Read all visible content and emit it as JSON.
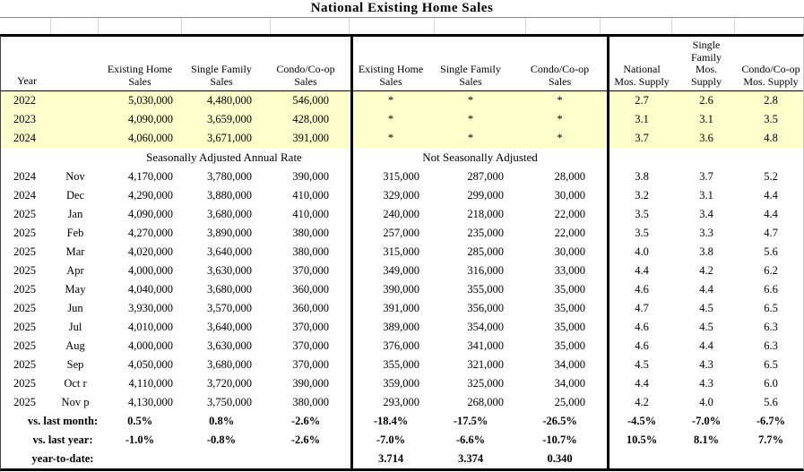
{
  "title": "National Existing Home Sales",
  "colors": {
    "highlight_yellow": "#FFFFCC",
    "border_black": "#000000",
    "grid_gray": "#D8D8D8"
  },
  "table": {
    "header": {
      "year_label": "Year",
      "saar_columns": [
        "Existing Home\nSales",
        "Single Family\nSales",
        "Condo/Co-op\nSales"
      ],
      "nsa_columns": [
        "Existing Home\nSales",
        "Single Family\nSales",
        "Condo/Co-op\nSales"
      ],
      "supply_columns": [
        "National\nMos. Supply",
        "Single\nFamily\nMos.\nSupply",
        "Condo/Co-op\nMos. Supply"
      ]
    },
    "saar_section_label": "Seasonally Adjusted Annual Rate",
    "nsa_section_label": "Not Seasonally Adjusted",
    "annual_rows": [
      {
        "year": "2022",
        "saar": [
          "5,030,000",
          "4,480,000",
          "546,000"
        ],
        "nsa": [
          "*",
          "*",
          "*"
        ],
        "supply": [
          "2.7",
          "2.6",
          "2.8"
        ]
      },
      {
        "year": "2023",
        "saar": [
          "4,090,000",
          "3,659,000",
          "428,000"
        ],
        "nsa": [
          "*",
          "*",
          "*"
        ],
        "supply": [
          "3.1",
          "3.1",
          "3.5"
        ]
      },
      {
        "year": "2024",
        "saar": [
          "4,060,000",
          "3,671,000",
          "391,000"
        ],
        "nsa": [
          "*",
          "*",
          "*"
        ],
        "supply": [
          "3.7",
          "3.6",
          "4.8"
        ]
      }
    ],
    "monthly_rows": [
      {
        "year": "2024",
        "month": "Nov",
        "saar": [
          "4,170,000",
          "3,780,000",
          "390,000"
        ],
        "nsa": [
          "315,000",
          "287,000",
          "28,000"
        ],
        "supply": [
          "3.8",
          "3.7",
          "5.2"
        ]
      },
      {
        "year": "2024",
        "month": "Dec",
        "saar": [
          "4,290,000",
          "3,880,000",
          "410,000"
        ],
        "nsa": [
          "329,000",
          "299,000",
          "30,000"
        ],
        "supply": [
          "3.2",
          "3.1",
          "4.4"
        ]
      },
      {
        "year": "2025",
        "month": "Jan",
        "saar": [
          "4,090,000",
          "3,680,000",
          "410,000"
        ],
        "nsa": [
          "240,000",
          "218,000",
          "22,000"
        ],
        "supply": [
          "3.5",
          "3.4",
          "4.4"
        ]
      },
      {
        "year": "2025",
        "month": "Feb",
        "saar": [
          "4,270,000",
          "3,890,000",
          "380,000"
        ],
        "nsa": [
          "257,000",
          "235,000",
          "22,000"
        ],
        "supply": [
          "3.5",
          "3.3",
          "4.7"
        ]
      },
      {
        "year": "2025",
        "month": "Mar",
        "saar": [
          "4,020,000",
          "3,640,000",
          "380,000"
        ],
        "nsa": [
          "315,000",
          "285,000",
          "30,000"
        ],
        "supply": [
          "4.0",
          "3.8",
          "5.6"
        ]
      },
      {
        "year": "2025",
        "month": "Apr",
        "saar": [
          "4,000,000",
          "3,630,000",
          "370,000"
        ],
        "nsa": [
          "349,000",
          "316,000",
          "33,000"
        ],
        "supply": [
          "4.4",
          "4.2",
          "6.2"
        ]
      },
      {
        "year": "2025",
        "month": "May",
        "saar": [
          "4,040,000",
          "3,680,000",
          "360,000"
        ],
        "nsa": [
          "390,000",
          "355,000",
          "35,000"
        ],
        "supply": [
          "4.6",
          "4.4",
          "6.6"
        ]
      },
      {
        "year": "2025",
        "month": "Jun",
        "saar": [
          "3,930,000",
          "3,570,000",
          "360,000"
        ],
        "nsa": [
          "391,000",
          "356,000",
          "35,000"
        ],
        "supply": [
          "4.7",
          "4.5",
          "6.5"
        ]
      },
      {
        "year": "2025",
        "month": "Jul",
        "saar": [
          "4,010,000",
          "3,640,000",
          "370,000"
        ],
        "nsa": [
          "389,000",
          "354,000",
          "35,000"
        ],
        "supply": [
          "4.6",
          "4.5",
          "6.3"
        ]
      },
      {
        "year": "2025",
        "month": "Aug",
        "saar": [
          "4,000,000",
          "3,630,000",
          "370,000"
        ],
        "nsa": [
          "376,000",
          "341,000",
          "35,000"
        ],
        "supply": [
          "4.6",
          "4.4",
          "6.3"
        ]
      },
      {
        "year": "2025",
        "month": "Sep",
        "saar": [
          "4,050,000",
          "3,680,000",
          "370,000"
        ],
        "nsa": [
          "355,000",
          "321,000",
          "34,000"
        ],
        "supply": [
          "4.5",
          "4.3",
          "6.5"
        ]
      },
      {
        "year": "2025",
        "month": "Oct r",
        "saar": [
          "4,110,000",
          "3,720,000",
          "390,000"
        ],
        "nsa": [
          "359,000",
          "325,000",
          "34,000"
        ],
        "supply": [
          "4.4",
          "4.3",
          "6.0"
        ]
      },
      {
        "year": "2025",
        "month": "Nov p",
        "saar": [
          "4,130,000",
          "3,750,000",
          "380,000"
        ],
        "nsa": [
          "293,000",
          "268,000",
          "25,000"
        ],
        "supply": [
          "4.2",
          "4.0",
          "5.6"
        ]
      }
    ],
    "summary_rows": [
      {
        "label": "vs. last month:",
        "saar": [
          "0.5%",
          "0.8%",
          "-2.6%"
        ],
        "nsa": [
          "-18.4%",
          "-17.5%",
          "-26.5%"
        ],
        "supply": [
          "-4.5%",
          "-7.0%",
          "-6.7%"
        ]
      },
      {
        "label": "vs. last year:",
        "saar": [
          "-1.0%",
          "-0.8%",
          "-2.6%"
        ],
        "nsa": [
          "-7.0%",
          "-6.6%",
          "-10.7%"
        ],
        "supply": [
          "10.5%",
          "8.1%",
          "7.7%"
        ]
      },
      {
        "label": "year-to-date:",
        "saar": [
          "",
          "",
          ""
        ],
        "nsa": [
          "3.714",
          "3.374",
          "0.340"
        ],
        "supply": [
          "",
          "",
          ""
        ]
      }
    ]
  }
}
